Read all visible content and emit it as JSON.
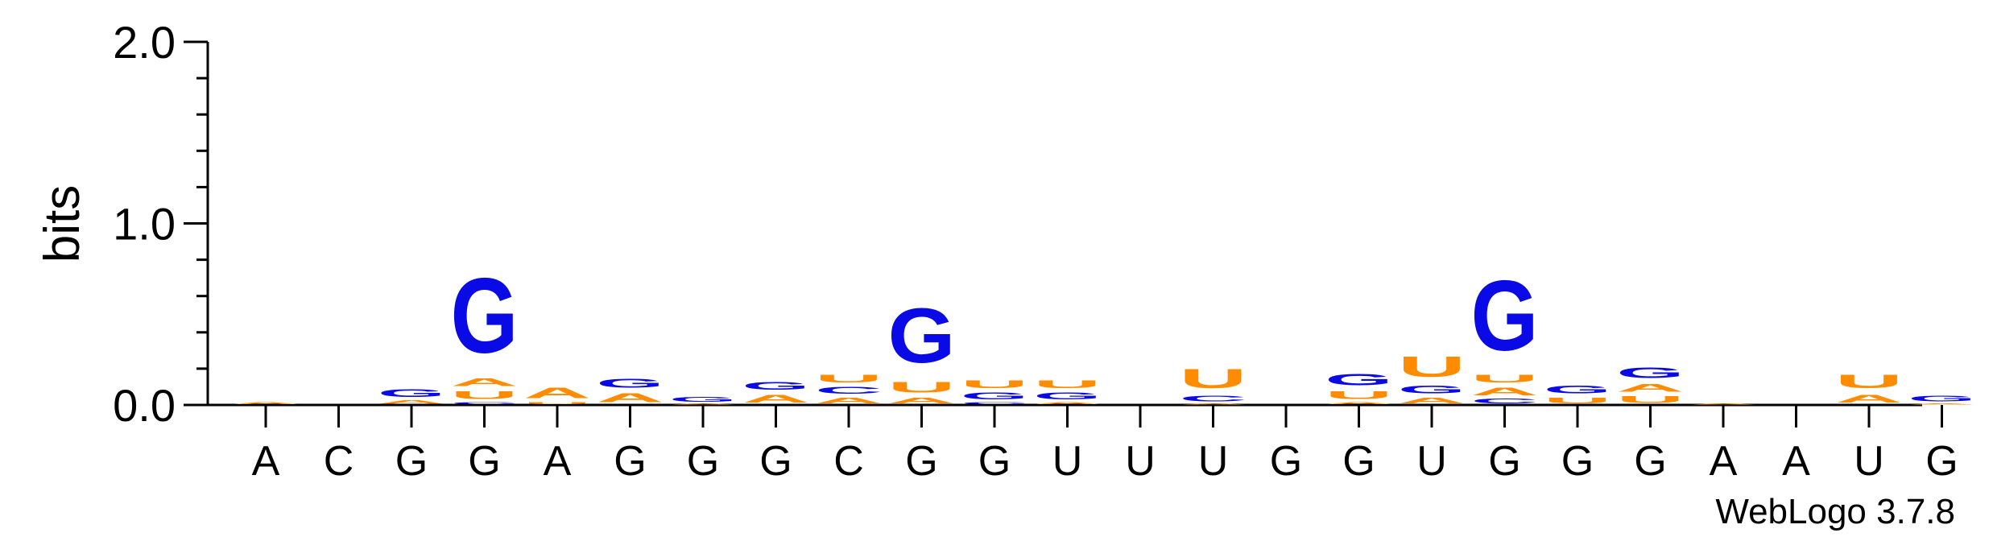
{
  "chart_data": {
    "type": "sequence-logo",
    "ylabel": "bits",
    "ylim": [
      0,
      2.0
    ],
    "yticks": [
      {
        "value": 0,
        "label": "0.0"
      },
      {
        "value": 1.0,
        "label": "1.0"
      },
      {
        "value": 2.0,
        "label": "2.0"
      }
    ],
    "ytick_minor_step": 0.2,
    "x_labels": [
      "A",
      "C",
      "G",
      "G",
      "A",
      "G",
      "G",
      "G",
      "C",
      "G",
      "G",
      "U",
      "U",
      "U",
      "G",
      "G",
      "U",
      "G",
      "G",
      "G",
      "A",
      "A",
      "U",
      "G"
    ],
    "colors": {
      "G": "#0a0ae6",
      "C": "#0a0ae6",
      "A": "#ff8c00",
      "U": "#ff8c00"
    },
    "stacks": [
      [
        [
          "A",
          0.02
        ]
      ],
      [],
      [
        [
          "A",
          0.03
        ],
        [
          "G",
          0.07
        ]
      ],
      [
        [
          "C",
          0.02
        ],
        [
          "U",
          0.07
        ],
        [
          "A",
          0.07
        ],
        [
          "G",
          0.66
        ]
      ],
      [
        [
          "U",
          0.02
        ],
        [
          "A",
          0.09
        ]
      ],
      [
        [
          "A",
          0.08
        ],
        [
          "G",
          0.08
        ]
      ],
      [
        [
          "A",
          0.01
        ],
        [
          "G",
          0.04
        ]
      ],
      [
        [
          "A",
          0.07
        ],
        [
          "G",
          0.07
        ]
      ],
      [
        [
          "A",
          0.05
        ],
        [
          "C",
          0.06
        ],
        [
          "U",
          0.07
        ]
      ],
      [
        [
          "A",
          0.05
        ],
        [
          "U",
          0.09
        ],
        [
          "G",
          0.48
        ]
      ],
      [
        [
          "C",
          0.02
        ],
        [
          "G",
          0.06
        ],
        [
          "U",
          0.07
        ]
      ],
      [
        [
          "A",
          0.02
        ],
        [
          "G",
          0.06
        ],
        [
          "U",
          0.07
        ]
      ],
      [],
      [
        [
          "A",
          0.01
        ],
        [
          "C",
          0.05
        ],
        [
          "U",
          0.17
        ]
      ],
      [],
      [
        [
          "A",
          0.02
        ],
        [
          "U",
          0.07
        ],
        [
          "G",
          0.1
        ]
      ],
      [
        [
          "A",
          0.05
        ],
        [
          "G",
          0.07
        ],
        [
          "U",
          0.18
        ]
      ],
      [
        [
          "C",
          0.04
        ],
        [
          "A",
          0.07
        ],
        [
          "U",
          0.07
        ],
        [
          "G",
          0.62
        ]
      ],
      [
        [
          "U",
          0.05
        ],
        [
          "G",
          0.07
        ]
      ],
      [
        [
          "U",
          0.06
        ],
        [
          "A",
          0.07
        ],
        [
          "G",
          0.09
        ]
      ],
      [
        [
          "A",
          0.01
        ]
      ],
      [],
      [
        [
          "A",
          0.07
        ],
        [
          "U",
          0.12
        ]
      ],
      [
        [
          "A",
          0.01
        ],
        [
          "G",
          0.05
        ]
      ]
    ]
  },
  "watermark": "WebLogo 3.7.8"
}
